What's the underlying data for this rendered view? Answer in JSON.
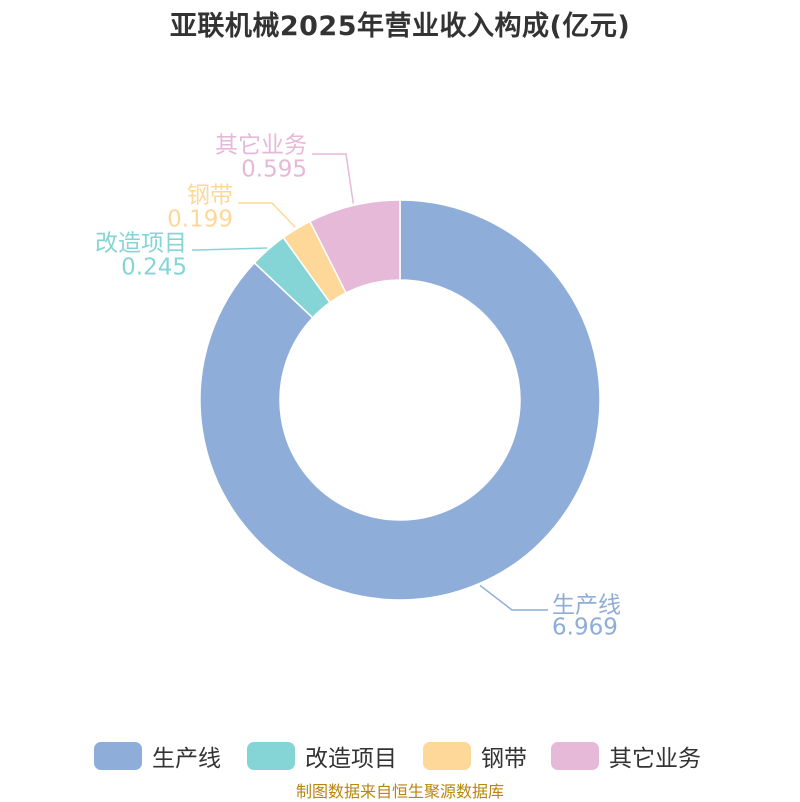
{
  "title": "亚联机械2025年营业收入构成(亿元)",
  "source": "制图数据来自恒生聚源数据库",
  "chart_data": {
    "type": "pie",
    "donut": true,
    "categories": [
      "生产线",
      "改造项目",
      "钢带",
      "其它业务"
    ],
    "values": [
      6.969,
      0.245,
      0.199,
      0.595
    ],
    "colors": [
      "#8eadd9",
      "#86d5d6",
      "#fdd899",
      "#e6b9d8"
    ],
    "legend_position": "bottom"
  }
}
